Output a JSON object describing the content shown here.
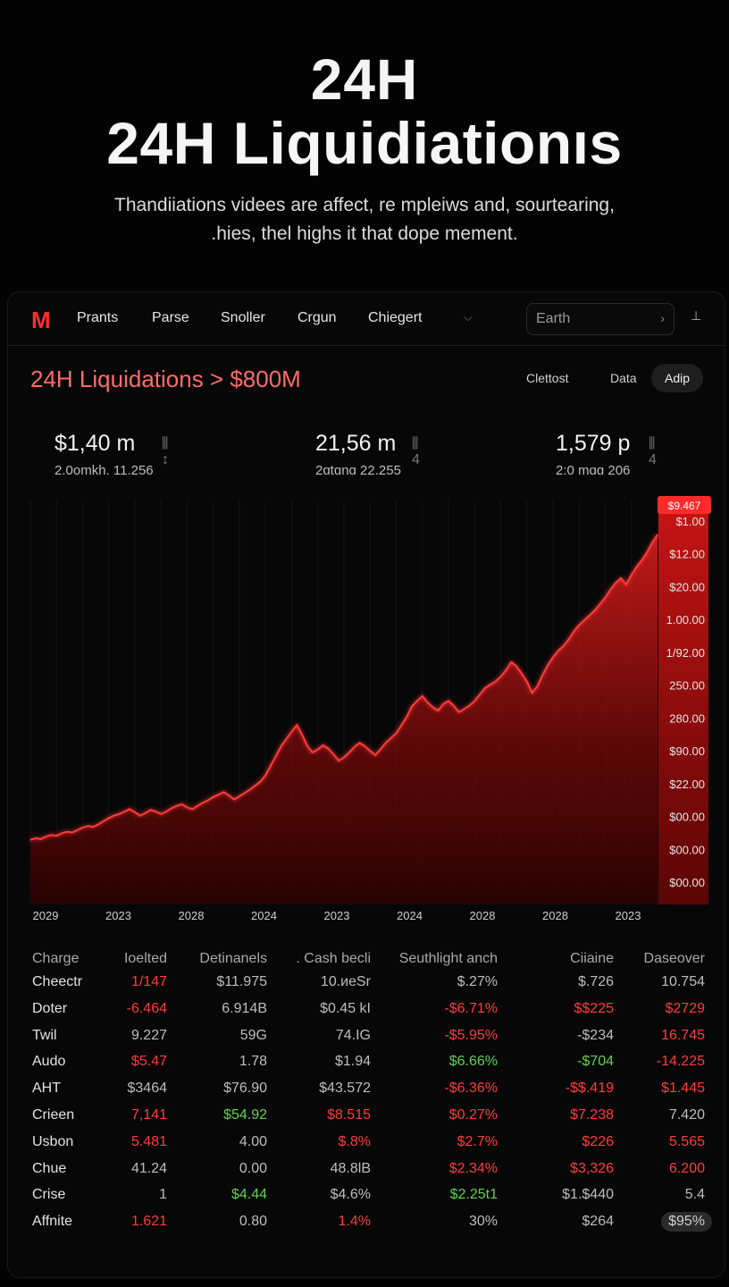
{
  "hero": {
    "kicker": "24H",
    "title": "24H Liquidiationıs",
    "description_line1": "Thandiiations videes are affect, re mpleiws and, sourtearing,",
    "description_line2": ".hies, thel highs it that dope mement."
  },
  "nav": {
    "logo": "M",
    "items": [
      "Prants",
      "Parse",
      "Snoller",
      "Crgun",
      "Chiegert"
    ],
    "dropdown_icon": "chevron-down-icon",
    "search_placeholder": "Earth",
    "search_arrow": "›",
    "extra": "⊥"
  },
  "chart_header": {
    "title": "24H Liquidations > $800M",
    "tabs": [
      "Clettost",
      "Data",
      "Adip"
    ],
    "active_tab": "Adip"
  },
  "stats": [
    {
      "value": "$1,40 m",
      "icon": "⫼ ↕",
      "sub": "2.0omkh. 11.256"
    },
    {
      "value": "21,56 m",
      "icon": "⫼ 4",
      "sub": "2ɑtɑnɑ 22.255"
    },
    {
      "value": "1,579 p",
      "icon": "⫼ 4",
      "sub": "2:0 mɑɑ 206"
    }
  ],
  "colors": {
    "accent": "#ff2d2d",
    "line": "#ff3a3a",
    "positive": "#5fd34f",
    "negative": "#ff3b3b"
  },
  "chart_data": {
    "type": "area",
    "title": "24H Liquidations > $800M",
    "x_ticks": [
      "2029",
      "2023",
      "2028",
      "2024",
      "2023",
      "2024",
      "2028",
      "2028",
      "2023"
    ],
    "y_ticks": [
      "$9.467",
      "$1.00",
      "$12.00",
      "$20.00",
      "1.00.00",
      "1/92.00",
      "250.00",
      "280.00",
      "$90.00",
      "$22.00",
      "$00.00",
      "$00.00",
      "$00.00"
    ],
    "current_value_label": "$9.467",
    "x": [
      0,
      1,
      2,
      3,
      4,
      5,
      6,
      7,
      8,
      9,
      10,
      11,
      12,
      13,
      14,
      15,
      16,
      17,
      18,
      19,
      20,
      21,
      22,
      23,
      24,
      25,
      26,
      27,
      28,
      29,
      30,
      31,
      32,
      33,
      34,
      35,
      36,
      37,
      38,
      39,
      40,
      41,
      42,
      43,
      44,
      45,
      46,
      47,
      48,
      49,
      50,
      51,
      52,
      53,
      54,
      55,
      56,
      57,
      58,
      59,
      60,
      61,
      62,
      63,
      64,
      65,
      66,
      67,
      68,
      69,
      70,
      71,
      72,
      73,
      74,
      75,
      76,
      77,
      78,
      79,
      80,
      81,
      82,
      83,
      84,
      85,
      86,
      87,
      88,
      89,
      90,
      91,
      92,
      93,
      94,
      95,
      96,
      97,
      98,
      99,
      100,
      101,
      102,
      103,
      104,
      105,
      106,
      107,
      108,
      109,
      110,
      111,
      112,
      113,
      114,
      115,
      116,
      117,
      118,
      119,
      120
    ],
    "series": [
      {
        "values": [
          80,
          82,
          81,
          84,
          86,
          85,
          88,
          90,
          89,
          92,
          95,
          97,
          96,
          99,
          103,
          107,
          110,
          112,
          115,
          118,
          114,
          110,
          113,
          117,
          115,
          112,
          115,
          119,
          122,
          124,
          120,
          118,
          122,
          126,
          129,
          133,
          136,
          139,
          135,
          130,
          134,
          138,
          142,
          147,
          152,
          160,
          172,
          184,
          196,
          205,
          214,
          222,
          210,
          196,
          188,
          192,
          197,
          193,
          186,
          178,
          182,
          188,
          195,
          200,
          196,
          190,
          185,
          192,
          200,
          206,
          212,
          222,
          232,
          245,
          252,
          258,
          250,
          244,
          240,
          248,
          252,
          246,
          238,
          242,
          246,
          252,
          260,
          268,
          272,
          276,
          282,
          290,
          300,
          295,
          286,
          276,
          262,
          270,
          284,
          296,
          306,
          314,
          320,
          328,
          338,
          346,
          352,
          358,
          364,
          372,
          380,
          390,
          398,
          404,
          396,
          408,
          418,
          426,
          436,
          448,
          458
        ]
      }
    ],
    "ylim": [
      0,
      500
    ],
    "grid": false
  },
  "table": {
    "headers": [
      "Charge",
      "Ioelted",
      "Detinanels",
      ". Cash becli",
      "Seuthlight anch",
      "Ciiaine",
      "Daseover"
    ],
    "rows": [
      {
        "name": "Cheectr",
        "cells": [
          [
            "1/147",
            "neg"
          ],
          [
            "$11.975",
            "dim"
          ],
          [
            "10.иeSr",
            "dim"
          ],
          [
            "$.27%",
            "dim"
          ],
          [
            "$.726",
            "dim"
          ],
          [
            "10.754",
            "dim"
          ]
        ]
      },
      {
        "name": "Doter",
        "cells": [
          [
            "-6.464",
            "neg"
          ],
          [
            "6.914B",
            "dim"
          ],
          [
            "$0.45 kI",
            "dim"
          ],
          [
            "-$6.71%",
            "neg"
          ],
          [
            "$$225",
            "neg"
          ],
          [
            "$2729",
            "neg"
          ]
        ]
      },
      {
        "name": "Twil",
        "cells": [
          [
            "9.227",
            "dim"
          ],
          [
            "59G",
            "dim"
          ],
          [
            "74.IG",
            "dim"
          ],
          [
            "-$5.95%",
            "neg"
          ],
          [
            "-$234",
            "dim"
          ],
          [
            "16.745",
            "neg"
          ]
        ]
      },
      {
        "name": "Audo",
        "cells": [
          [
            "$5.47",
            "neg"
          ],
          [
            "1.78",
            "dim"
          ],
          [
            "$1.94",
            "dim"
          ],
          [
            "$6.66%",
            "pos"
          ],
          [
            "-$704",
            "pos"
          ],
          [
            "-14.225",
            "neg"
          ]
        ]
      },
      {
        "name": "AHT",
        "cells": [
          [
            "$3464",
            "dim"
          ],
          [
            "$76.90",
            "dim"
          ],
          [
            "$43.572",
            "dim"
          ],
          [
            "-$6.36%",
            "neg"
          ],
          [
            "-$$.419",
            "neg"
          ],
          [
            "$1.445",
            "neg"
          ]
        ]
      },
      {
        "name": "Crieen",
        "cells": [
          [
            "7,141",
            "neg"
          ],
          [
            "$54.92",
            "pos"
          ],
          [
            "$8.515",
            "neg"
          ],
          [
            "$0.27%",
            "neg"
          ],
          [
            "$7.238",
            "neg"
          ],
          [
            "7.420",
            "dim"
          ]
        ]
      },
      {
        "name": "Usbon",
        "cells": [
          [
            "5.481",
            "neg"
          ],
          [
            "4.00",
            "dim"
          ],
          [
            "$.8%",
            "neg"
          ],
          [
            "$2.7%",
            "neg"
          ],
          [
            "$226",
            "neg"
          ],
          [
            "5.565",
            "neg"
          ]
        ]
      },
      {
        "name": "Chue",
        "cells": [
          [
            "41.24",
            "dim"
          ],
          [
            "0.00",
            "dim"
          ],
          [
            "48.8lB",
            "dim"
          ],
          [
            "$2.34%",
            "neg"
          ],
          [
            "$3,326",
            "neg"
          ],
          [
            "6.200",
            "neg"
          ]
        ]
      },
      {
        "name": "Crise",
        "cells": [
          [
            "1",
            "dim"
          ],
          [
            "$4.44",
            "pos"
          ],
          [
            "$4.6%",
            "dim"
          ],
          [
            "$2.25t1",
            "pos"
          ],
          [
            "$1.$440",
            "dim"
          ],
          [
            "5.4",
            "dim"
          ]
        ]
      },
      {
        "name": "Affnite",
        "cells": [
          [
            "1.621",
            "neg"
          ],
          [
            "0.80",
            "dim"
          ],
          [
            "1.4%",
            "neg"
          ],
          [
            "30%",
            "dim"
          ],
          [
            "$264",
            "dim"
          ],
          [
            "$95%",
            "dim"
          ]
        ]
      }
    ]
  }
}
